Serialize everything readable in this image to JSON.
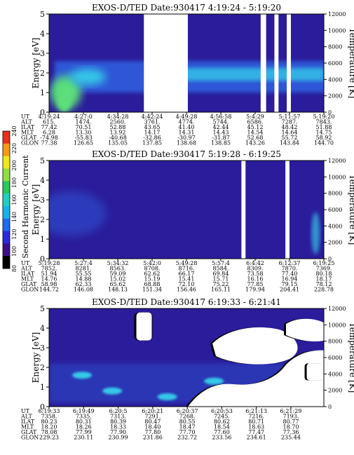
{
  "colors": {
    "background_low": "#2a1c9a",
    "band_mid": "#2f57d6",
    "band_high": "#35c8e8",
    "hot": "#5cde7a",
    "data_gap": "#ffffff",
    "edge": "#000000"
  },
  "colorbar": {
    "label": "Second Harmonic Current",
    "ticks": [
      "80",
      "100",
      "120",
      "140",
      "160",
      "180",
      "200",
      "220",
      "240"
    ],
    "colors": [
      "#000000",
      "#3b0f8c",
      "#2a2ae0",
      "#1e6cf0",
      "#15b4e8",
      "#1fd0c0",
      "#27c95a",
      "#8ee03c",
      "#f0e81a",
      "#f59a15",
      "#e8301c"
    ]
  },
  "ephemeris_labels": [
    "UT",
    "ALT",
    "ILAT",
    "MLT",
    "GLAT",
    "GLON"
  ],
  "chart_data": [
    {
      "type": "heatmap",
      "title": "EXOS-D/TED   Date:930417   4:19:24 - 5:19:20",
      "ylabel": "Energy [eV]",
      "ylabel_right": "Temperature [K]",
      "ylim": [
        0,
        5
      ],
      "ylim_right": [
        0,
        12000
      ],
      "yticks": [
        "0",
        "1",
        "2",
        "3",
        "4",
        "5"
      ],
      "yticks_right": [
        "0",
        "2000",
        "4000",
        "6000",
        "8000",
        "10000",
        "12000"
      ],
      "ephemeris": [
        [
          "4:19:24",
          "615.",
          "77.42",
          "6.28",
          "-74.98",
          "77.38"
        ],
        [
          "4:27:0",
          "1474.",
          "70.51",
          "13.30",
          "-55.83",
          "126.65"
        ],
        [
          "4:34:28",
          "2560.",
          "52.88",
          "13.92",
          "-40.68",
          "135.05"
        ],
        [
          "4:42:24",
          "3761.",
          "43.65",
          "14.17",
          "-32.86",
          "137.85"
        ],
        [
          "4:49:28",
          "4774.",
          "41.40",
          "14.31",
          "-30.97",
          "138.68"
        ],
        [
          "4:56:58",
          "5744.",
          "42.44",
          "14.43",
          "-31.87",
          "138.85"
        ],
        [
          "5:4:29",
          "6586.",
          "45.12",
          "14.54",
          "52.68",
          "143.26"
        ],
        [
          "5:11:57",
          "7287.",
          "48.42",
          "14.64",
          "55.72",
          "143.84"
        ],
        [
          "5:19:20",
          "7843.",
          "51.88",
          "14.75",
          "58.92",
          "144.70"
        ]
      ],
      "gaps": [
        [
          0.345,
          0.505
        ],
        [
          0.77,
          0.79
        ],
        [
          0.82,
          0.835
        ],
        [
          0.865,
          0.88
        ]
      ]
    },
    {
      "type": "heatmap",
      "title": "EXOS-D/TED   Date:930417   5:19:28 - 6:19:25",
      "ylabel": "Energy [eV]",
      "ylabel_right": "Temperature [K]",
      "ylim": [
        0,
        5
      ],
      "ylim_right": [
        0,
        12000
      ],
      "yticks": [
        "0",
        "1",
        "2",
        "3",
        "4",
        "5"
      ],
      "yticks_right": [
        "0",
        "2000",
        "4000",
        "6000",
        "8000",
        "10000",
        "12000"
      ],
      "ephemeris": [
        [
          "5:19:28",
          "7852.",
          "51.94",
          "14.76",
          "58.98",
          "144.72"
        ],
        [
          "5:27:4",
          "8281.",
          "55.55",
          "14.88",
          "62.33",
          "146.08"
        ],
        [
          "5:34:32",
          "8563.",
          "59.09",
          "15.02",
          "65.62",
          "148.13"
        ],
        [
          "5:42:0",
          "8708.",
          "62.62",
          "15.19",
          "68.88",
          "151.34"
        ],
        [
          "5:49:28",
          "8716.",
          "66.17",
          "15.41",
          "72.10",
          "156.46"
        ],
        [
          "5:57:4",
          "8584.",
          "69.84",
          "15.71",
          "75.22",
          "165.11"
        ],
        [
          "6:4:42",
          "8309.",
          "73.58",
          "16.16",
          "77.85",
          "179.94"
        ],
        [
          "6:12:37",
          "7870.",
          "77.40",
          "16.94",
          "79.15",
          "204.41"
        ],
        [
          "6:19:25",
          "7369.",
          "80.18",
          "18.17",
          "78.12",
          "228.78"
        ]
      ],
      "gaps": [
        [
          0.7,
          0.715
        ],
        [
          0.86,
          0.875
        ]
      ]
    },
    {
      "type": "heatmap",
      "title": "EXOS-D/TED   Date:930417   6:19:33 - 6:21:41",
      "ylabel": "Energy [eV]",
      "ylabel_right": "Temperature [K]",
      "ylim": [
        0,
        5
      ],
      "ylim_right": [
        0,
        12000
      ],
      "yticks": [
        "0",
        "1",
        "2",
        "3",
        "4",
        "5"
      ],
      "yticks_right": [
        "0",
        "2000",
        "4000",
        "6000",
        "8000",
        "10000",
        "12000"
      ],
      "ephemeris": [
        [
          "6:19:33",
          "7358.",
          "80.23",
          "18.20",
          "78.08",
          "229.23"
        ],
        [
          "6:19:49",
          "7335.",
          "80.31",
          "18.26",
          "77.99",
          "230.11"
        ],
        [
          "6:20:5",
          "7313.",
          "80.39",
          "18.33",
          "77.90",
          "230.99"
        ],
        [
          "6:20:21",
          "7291.",
          "80.47",
          "18.40",
          "77.80",
          "231.86"
        ],
        [
          "6:20:37",
          "7268.",
          "80.55",
          "18.47",
          "77.70",
          "232.72"
        ],
        [
          "6:20:53",
          "7245.",
          "80.62",
          "18.54",
          "77.60",
          "233.56"
        ],
        [
          "6:21:13",
          "7216.",
          "80.71",
          "18.63",
          "77.47",
          "234.61"
        ],
        [
          "6:21:29",
          "7193.",
          "80.77",
          "18.70",
          "77.36",
          "235.44"
        ]
      ],
      "gaps": []
    }
  ]
}
